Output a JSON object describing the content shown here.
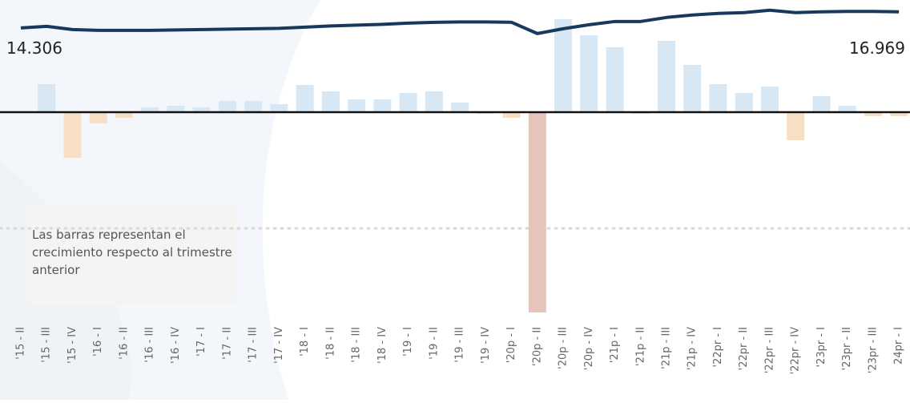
{
  "chart_data": {
    "type": "bar",
    "annotation": "Las barras representan el crecimiento respecto al trimestre anterior",
    "categories": [
      "'15 - II",
      "'15 - III",
      "'15 - IV",
      "'16 - I",
      "'16 - II",
      "'16 - III",
      "'16 - IV",
      "'17 - I",
      "'17 - II",
      "'17 - III",
      "'17 - IV",
      "'18 - I",
      "'18 - II",
      "'18 - III",
      "'18 - IV",
      "'19 - I",
      "'19 - II",
      "'19 - III",
      "'19 - IV",
      "'20p - I",
      "'20p - II",
      "'20p - III",
      "'20p - IV",
      "'21p - I",
      "'21p - II",
      "'21p - III",
      "'21p - IV",
      "'22pr - I",
      "'22pr - II",
      "'22pr - III",
      "'22pr - IV",
      "'23pr - I",
      "'23pr - II",
      "'23pr - III",
      "24pr - I"
    ],
    "series": [
      {
        "type": "bar",
        "values": [
          null,
          1.75,
          -2.85,
          -0.7,
          -0.35,
          0.3,
          0.4,
          0.3,
          0.7,
          0.7,
          0.5,
          1.7,
          1.3,
          0.8,
          0.8,
          1.2,
          1.3,
          0.6,
          -0.1,
          -0.35,
          -12.5,
          5.8,
          4.8,
          4.05,
          -0.1,
          4.45,
          2.95,
          1.75,
          1.2,
          1.6,
          -1.75,
          1.0,
          0.4,
          -0.25,
          -0.25
        ],
        "positive_color": "#d7e7f3",
        "negative_color": "#f8dfc4",
        "colors": {
          "20": "#e6c3bb"
        }
      },
      {
        "type": "line",
        "axis": "y2",
        "color": "#17395c",
        "values": [
          14.306,
          14.572,
          14.04,
          13.907,
          13.907,
          13.907,
          13.973,
          14.04,
          14.106,
          14.173,
          14.239,
          14.439,
          14.639,
          14.772,
          14.905,
          15.105,
          15.238,
          15.305,
          15.305,
          15.238,
          13.374,
          14.173,
          14.839,
          15.371,
          15.371,
          16.037,
          16.436,
          16.703,
          16.836,
          17.235,
          16.836,
          16.969,
          17.036,
          17.036,
          16.969
        ],
        "labeled_points": [
          0,
          34
        ]
      }
    ],
    "ylim": [
      -13,
      7
    ],
    "y2lim": [
      12.3,
      17.6
    ]
  }
}
